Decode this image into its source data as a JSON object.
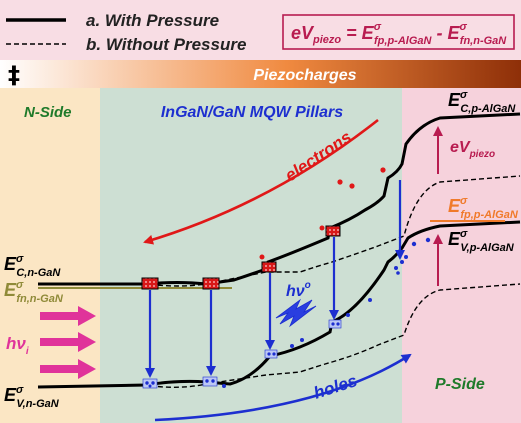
{
  "legend": {
    "solid_label": "a. With Pressure",
    "dashed_label": "b. Without Pressure"
  },
  "equation": {
    "lhs_main": "eV",
    "lhs_sub": "piezo",
    "eq": " = E",
    "sup": "σ",
    "t1_sub": "fp,p-AlGaN",
    "mid": " - E",
    "t2_sub": "fn,n-GaN"
  },
  "piezo_bar": {
    "charges": "‡",
    "label": "Piezocharges"
  },
  "regions": {
    "n_side": "N-Side",
    "mqw": "InGaN/GaN MQW Pillars",
    "p_side": "P-Side"
  },
  "labels": {
    "electrons": "electrons",
    "holes": "holes",
    "hv_emit_main": "hν",
    "hv_emit_sub": "o",
    "hv_in_main": "hν",
    "hv_in_sub": "i",
    "sup": "σ",
    "ec_n_main": "E",
    "ec_n_sub": "C,n-GaN",
    "efn_main": "E",
    "efn_sub": "fn,n-GaN",
    "ev_n_main": "E",
    "ev_n_sub": "V,n-GaN",
    "ec_p_main": "E",
    "ec_p_sub": "C,p-AlGaN",
    "evpiezo_main": "eV",
    "evpiezo_sub": "piezo",
    "efp_main": "E",
    "efp_sub": "fp,p-AlGaN",
    "ev_p_main": "E",
    "ev_p_sub": "V,p-AlGaN"
  },
  "colors": {
    "n_bg": "#fbe6c4",
    "mqw_bg": "#cddfd3",
    "p_bg": "#f6d2dc",
    "header_bg": "#f8dde4",
    "green_text": "#1f7a2a",
    "blue": "#1d2fd0",
    "red": "#e01818",
    "magenta": "#e0339a",
    "orange": "#f07a2a",
    "olive": "#8f8a38",
    "dark_red": "#b81c50"
  }
}
